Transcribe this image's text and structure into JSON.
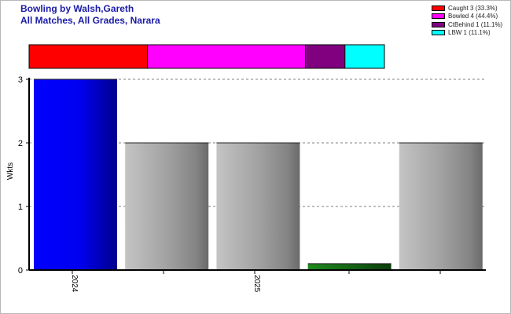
{
  "title": "Bowling by Walsh,Gareth",
  "subtitle": "All Matches, All Grades, Narara",
  "chart_data": [
    {
      "type": "bar",
      "orientation": "horizontal-stacked",
      "series": [
        {
          "name": "Caught",
          "value": 3,
          "label": "Caught 3 (33.3%)",
          "color": "#ff0000"
        },
        {
          "name": "Bowled",
          "value": 4,
          "label": "Bowled 4 (44.4%)",
          "color": "#ff00ff"
        },
        {
          "name": "CtBehind",
          "value": 1,
          "label": "CtBehind 1 (11.1%)",
          "color": "#800080"
        },
        {
          "name": "LBW",
          "value": 1,
          "label": "LBW 1 (11.1%)",
          "color": "#00ffff"
        }
      ],
      "legend": "top-right"
    },
    {
      "type": "bar",
      "ylabel": "Wkts",
      "ylim": [
        0,
        3
      ],
      "yticks": [
        "0",
        "1",
        "2",
        "3"
      ],
      "xtick_labels": [
        "2024",
        "2025"
      ],
      "grid": "horizontal dashed",
      "values": [
        3,
        2,
        2,
        0.1,
        2
      ],
      "bar_colors": [
        "blue",
        "grey",
        "grey",
        "green",
        "grey"
      ]
    }
  ]
}
